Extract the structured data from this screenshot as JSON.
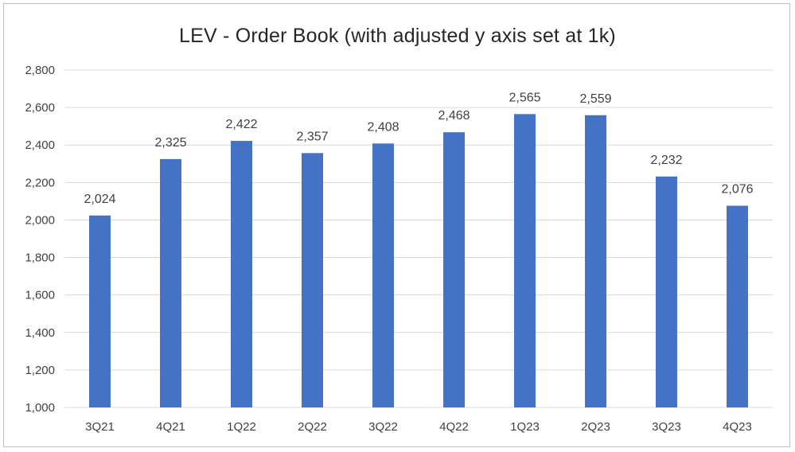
{
  "chart_data": {
    "type": "bar",
    "title": "LEV - Order Book (with adjusted y axis set at 1k)",
    "xlabel": "",
    "ylabel": "",
    "categories": [
      "3Q21",
      "4Q21",
      "1Q22",
      "2Q22",
      "3Q22",
      "4Q22",
      "1Q23",
      "2Q23",
      "3Q23",
      "4Q23"
    ],
    "values": [
      2024,
      2325,
      2422,
      2357,
      2408,
      2468,
      2565,
      2559,
      2232,
      2076
    ],
    "data_labels": [
      "2,024",
      "2,325",
      "2,422",
      "2,357",
      "2,408",
      "2,468",
      "2,565",
      "2,559",
      "2,232",
      "2,076"
    ],
    "ylim": [
      1000,
      2800
    ],
    "yticks": [
      1000,
      1200,
      1400,
      1600,
      1800,
      2000,
      2200,
      2400,
      2600,
      2800
    ],
    "ytick_labels": [
      "1,000",
      "1,200",
      "1,400",
      "1,600",
      "1,800",
      "2,000",
      "2,200",
      "2,400",
      "2,600",
      "2,800"
    ],
    "grid": true,
    "legend": "none",
    "colors": {
      "bar": "#4472C4",
      "grid": "#d9d9d9",
      "text": "#404040",
      "border": "#bfbfbf"
    }
  }
}
